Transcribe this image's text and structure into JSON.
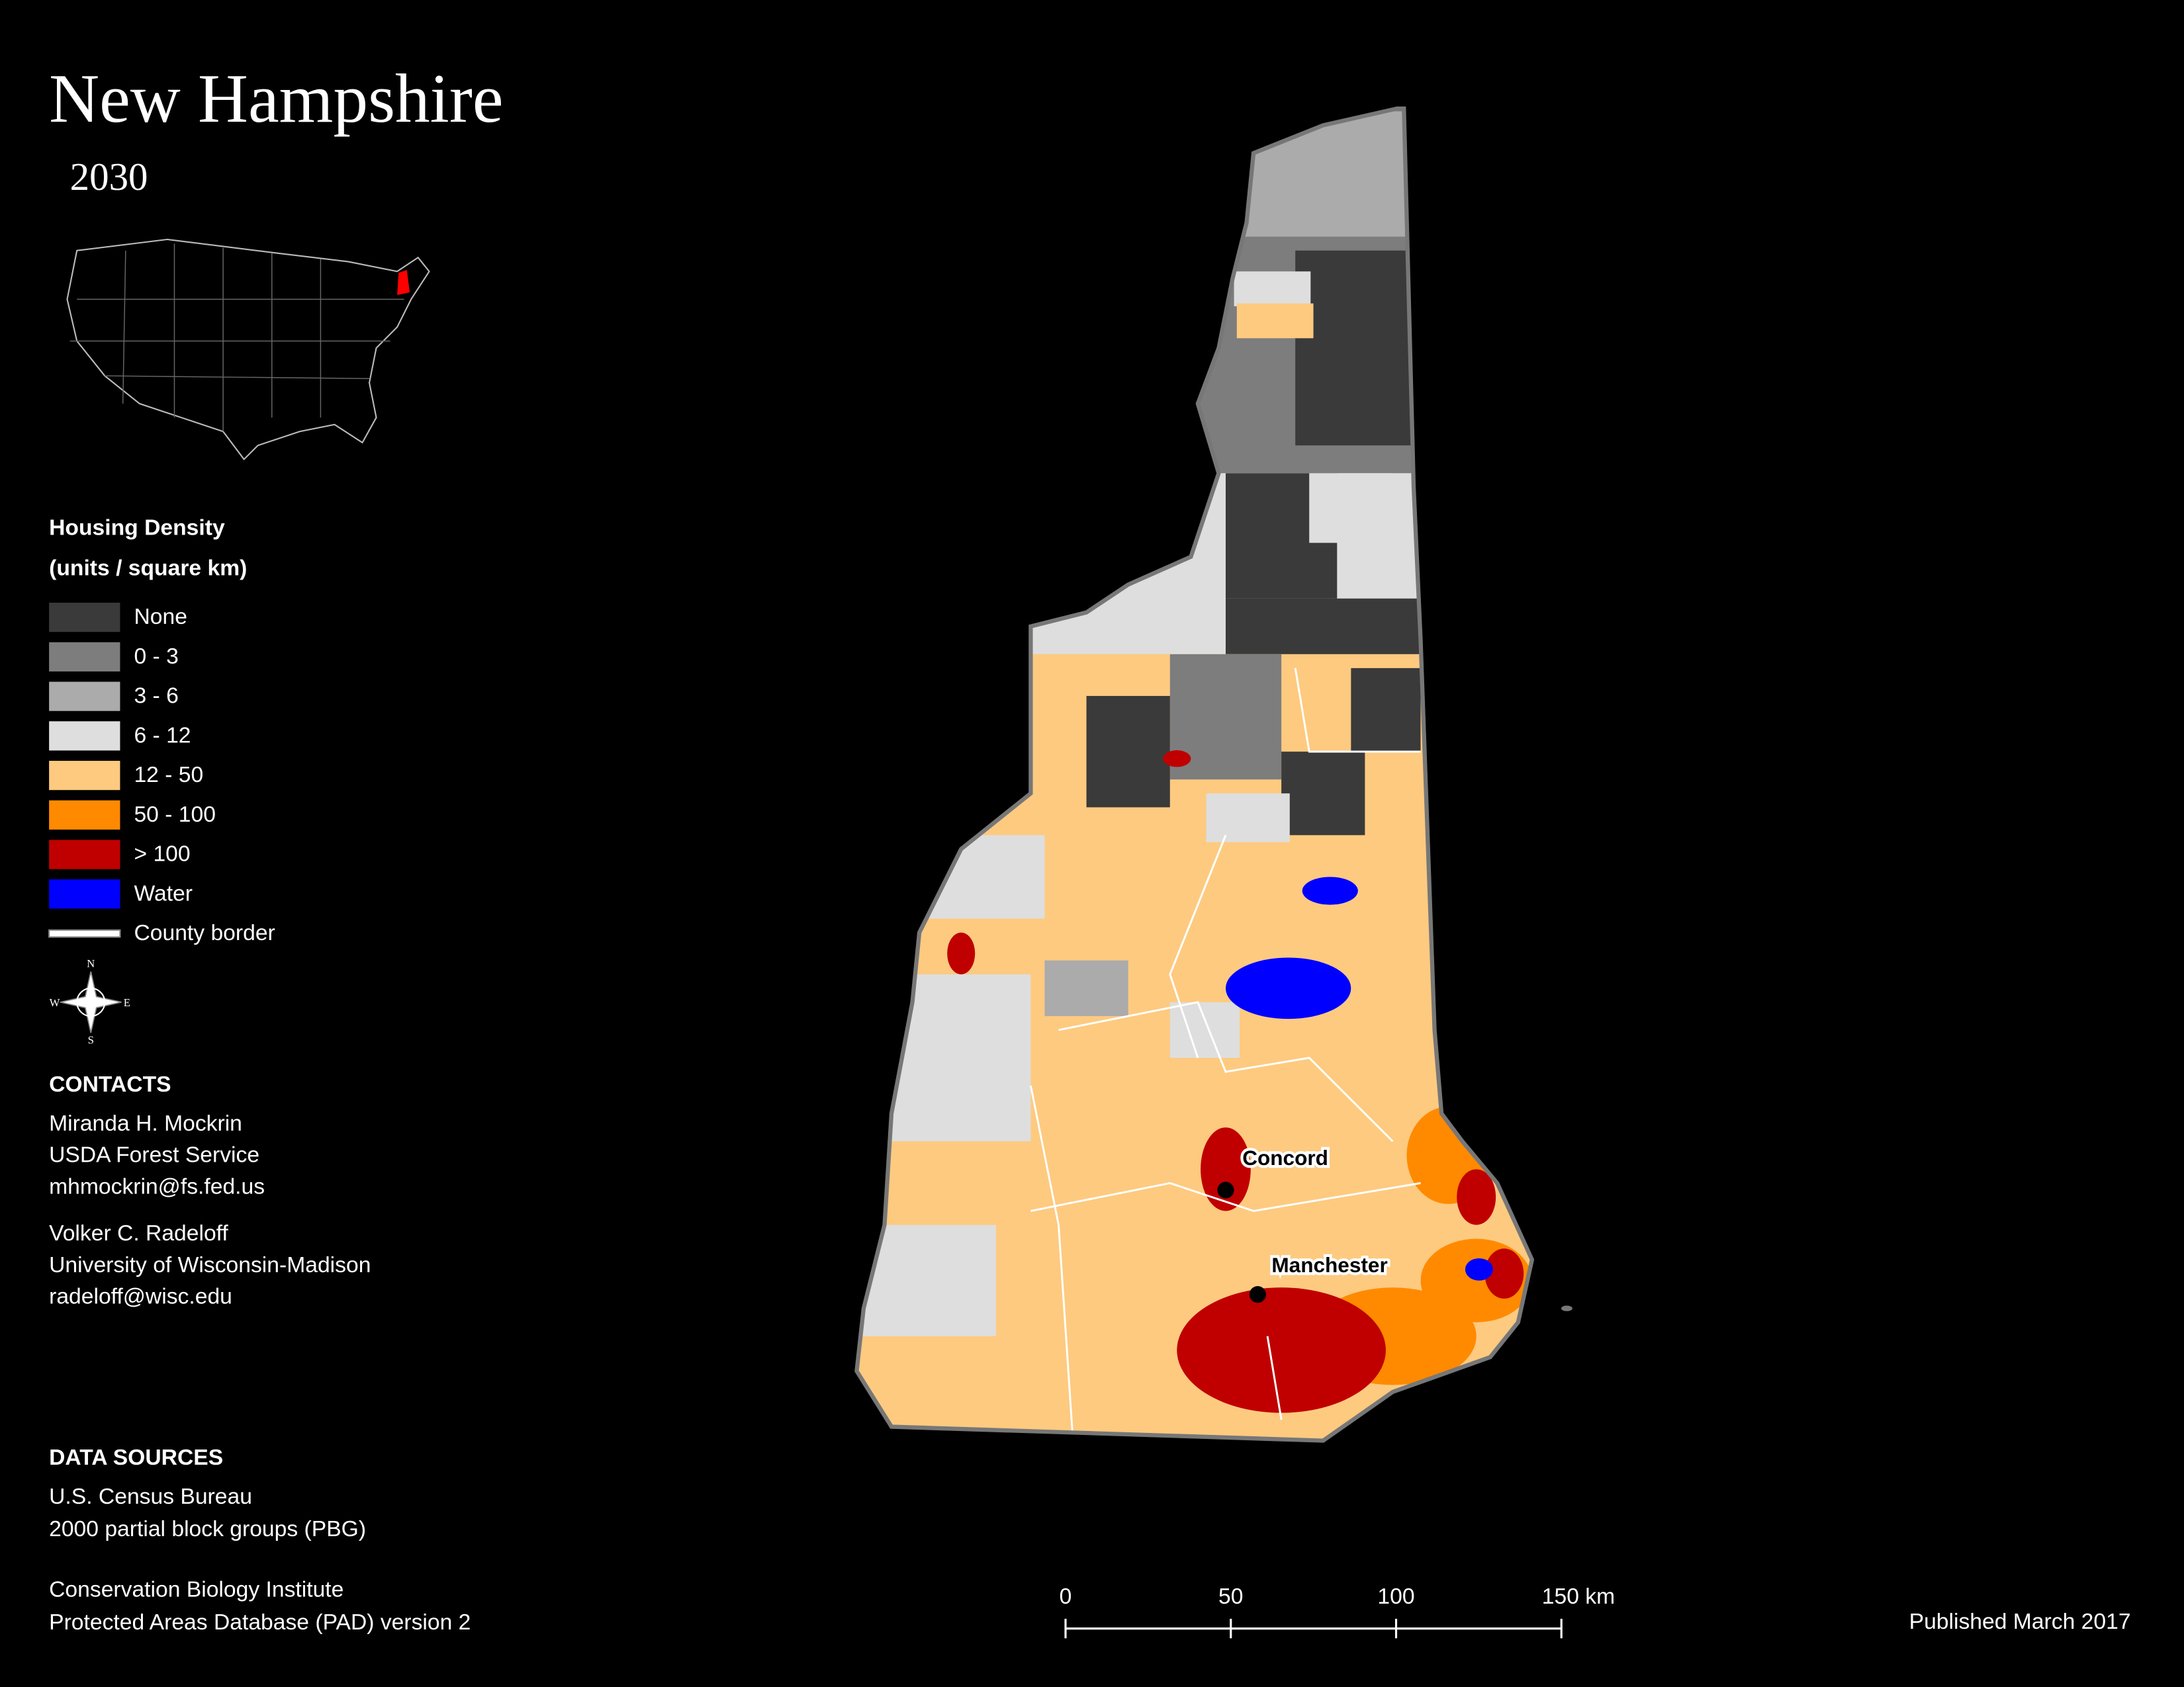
{
  "header": {
    "title": "New Hampshire",
    "subtitle": "2030"
  },
  "legend": {
    "title": "Housing Density",
    "subtitle": "(units / square km)",
    "items": [
      {
        "label": "None",
        "color": "#3a3a3a"
      },
      {
        "label": "0 - 3",
        "color": "#7d7d7d"
      },
      {
        "label": "3 - 6",
        "color": "#ababab"
      },
      {
        "label": "6 - 12",
        "color": "#dedede"
      },
      {
        "label": "12 - 50",
        "color": "#fdca80"
      },
      {
        "label": "50 - 100",
        "color": "#ff8a00"
      },
      {
        "label": "> 100",
        "color": "#c00000"
      },
      {
        "label": "Water",
        "color": "#0000ff"
      },
      {
        "label": "County border",
        "color": "#ffffff"
      }
    ]
  },
  "compass": {
    "n": "N",
    "e": "E",
    "s": "S",
    "w": "W"
  },
  "contacts": {
    "heading": "CONTACTS",
    "people": [
      [
        "Miranda H. Mockrin",
        "USDA Forest Service",
        "mhmockrin@fs.fed.us"
      ],
      [
        "Volker C. Radeloff",
        "University of Wisconsin-Madison",
        "radeloff@wisc.edu"
      ]
    ]
  },
  "data_sources": {
    "heading": "DATA SOURCES",
    "entries": [
      [
        "U.S. Census Bureau",
        "2000 partial block groups (PBG)"
      ],
      [
        "Conservation Biology Institute",
        "Protected Areas Database (PAD) version 2"
      ]
    ]
  },
  "cities": [
    {
      "label": "Concord"
    },
    {
      "label": "Manchester"
    }
  ],
  "scale_bar": {
    "labels": [
      "0",
      "50",
      "100",
      "150 km"
    ]
  },
  "footer": {
    "published": "Published March 2017"
  }
}
